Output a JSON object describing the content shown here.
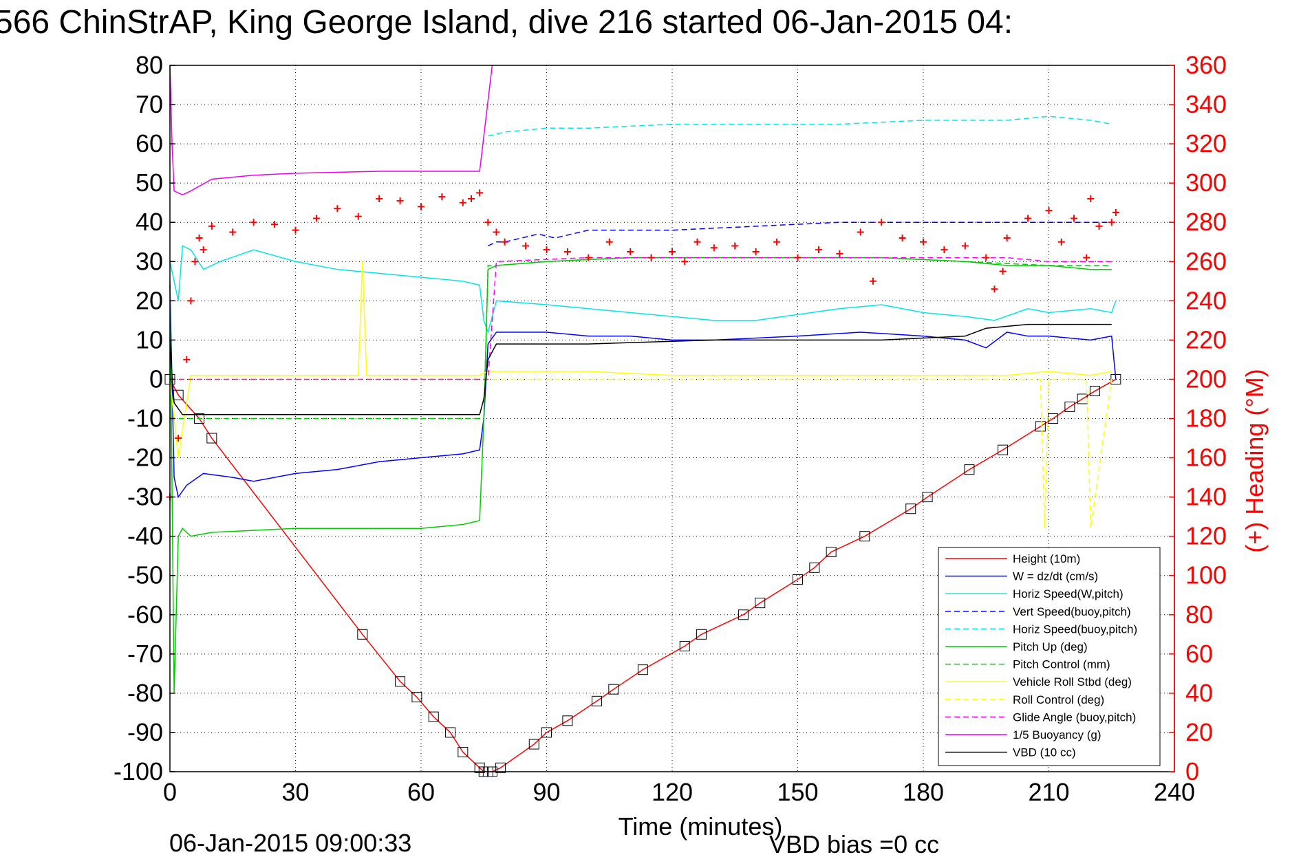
{
  "chart_data": {
    "type": "line",
    "title": "566 ChinStrAP, King George Island, dive 216 started 06-Jan-2015 04:",
    "xlabel": "Time (minutes)",
    "ylabel_right": "(+) Heading (°M)",
    "xlim": [
      0,
      240
    ],
    "ylim": [
      -100,
      80
    ],
    "ylim_right": [
      0,
      360
    ],
    "xticks": [
      "0",
      "30",
      "60",
      "90",
      "120",
      "150",
      "180",
      "210",
      "240"
    ],
    "yticks": [
      "80",
      "70",
      "60",
      "50",
      "40",
      "30",
      "20",
      "10",
      "0",
      "-10",
      "-20",
      "-30",
      "-40",
      "-50",
      "-60",
      "-70",
      "-80",
      "-90",
      "-100"
    ],
    "yticks_right": [
      "360",
      "340",
      "320",
      "300",
      "280",
      "260",
      "240",
      "220",
      "200",
      "180",
      "160",
      "140",
      "120",
      "100",
      "80",
      "60",
      "40",
      "20",
      "0"
    ],
    "grid": true,
    "legend_position": "bottom-right",
    "footer_date": "06-Jan-2015 09:00:33",
    "footer_vbd": "VBD bias =0 cc",
    "series": [
      {
        "name": "Height (10m)",
        "color": "#ff0000",
        "style": "solid",
        "axis": "left",
        "x": [
          0,
          2,
          7,
          10,
          46,
          55,
          59,
          63,
          67,
          70,
          74,
          75,
          76,
          77,
          79,
          87,
          90,
          95,
          102,
          106,
          113,
          123,
          127,
          137,
          141,
          150,
          154,
          158,
          166,
          177,
          181,
          191,
          199,
          208,
          211,
          215,
          218,
          221,
          226
        ],
        "y": [
          0,
          -4,
          -10,
          -15,
          -65,
          -77,
          -81,
          -86,
          -90,
          -95,
          -99,
          -100,
          -100,
          -100,
          -99,
          -93,
          -90,
          -87,
          -82,
          -79,
          -74,
          -68,
          -65,
          -60,
          -57,
          -51,
          -48,
          -44,
          -40,
          -33,
          -30,
          -23,
          -18,
          -12,
          -10,
          -7,
          -5,
          -3,
          0
        ]
      },
      {
        "name": "W = dz/dt (cm/s)",
        "color": "#0000ff",
        "style": "solid",
        "axis": "left",
        "x": [
          0,
          1,
          2,
          4,
          8,
          15,
          20,
          30,
          40,
          50,
          60,
          70,
          74,
          75,
          76,
          78,
          90,
          100,
          110,
          120,
          130,
          150,
          165,
          180,
          190,
          195,
          200,
          205,
          210,
          220,
          225,
          226
        ],
        "y": [
          24,
          -25,
          -30,
          -27,
          -24,
          -25,
          -26,
          -24,
          -23,
          -21,
          -20,
          -19,
          -18,
          -10,
          9,
          12,
          12,
          11,
          11,
          10,
          10,
          11,
          12,
          11,
          10,
          8,
          12,
          11,
          11,
          10,
          11,
          0
        ]
      },
      {
        "name": "Horiz Speed(W,pitch)",
        "color": "#00e5e5",
        "style": "solid",
        "axis": "left",
        "x": [
          0,
          2,
          3,
          5,
          8,
          12,
          20,
          30,
          40,
          50,
          60,
          70,
          74,
          75,
          76,
          78,
          90,
          110,
          120,
          130,
          140,
          160,
          170,
          180,
          190,
          197,
          205,
          210,
          220,
          225,
          226
        ],
        "y": [
          30,
          20,
          34,
          33,
          28,
          30,
          33,
          30,
          28,
          27,
          26,
          25,
          24,
          15,
          12,
          20,
          19,
          17,
          16,
          15,
          15,
          18,
          19,
          17,
          16,
          15,
          18,
          17,
          18,
          17,
          20
        ]
      },
      {
        "name": "Vert Speed(buoy,pitch)",
        "color": "#0000ff",
        "style": "dashed",
        "axis": "left",
        "x": [
          76,
          78,
          80,
          88,
          92,
          100,
          120,
          140,
          160,
          190,
          200,
          210,
          220,
          225
        ],
        "y": [
          34,
          35,
          35,
          37,
          36,
          38,
          38,
          39,
          40,
          40,
          40,
          40,
          40,
          40
        ]
      },
      {
        "name": "Horiz Speed(buoy,pitch)",
        "color": "#00e5e5",
        "style": "dashed",
        "axis": "left",
        "x": [
          76,
          80,
          90,
          100,
          120,
          140,
          160,
          180,
          200,
          210,
          220,
          225
        ],
        "y": [
          62,
          63,
          64,
          64,
          65,
          65,
          65,
          66,
          66,
          67,
          66,
          65
        ]
      },
      {
        "name": "Pitch Up (deg)",
        "color": "#00cc00",
        "style": "solid",
        "axis": "left",
        "x": [
          0,
          1,
          2,
          3,
          5,
          10,
          30,
          50,
          60,
          70,
          74,
          75,
          76,
          78,
          90,
          110,
          130,
          150,
          170,
          190,
          200,
          210,
          220,
          225
        ],
        "y": [
          25,
          -80,
          -40,
          -38,
          -40,
          -39,
          -38,
          -38,
          -38,
          -37,
          -36,
          -10,
          28,
          29,
          30,
          31,
          31,
          31,
          31,
          30,
          29,
          29,
          28,
          28
        ]
      },
      {
        "name": "Pitch Control (mm)",
        "color": "#00cc00",
        "style": "dashed",
        "axis": "left",
        "x": [
          0,
          5,
          10,
          30,
          50,
          70,
          74,
          75,
          76,
          78,
          90,
          110,
          130,
          150,
          170,
          190,
          210,
          225
        ],
        "y": [
          -10,
          -10,
          -10,
          -10,
          -10,
          -10,
          -10,
          -10,
          29,
          29,
          30,
          31,
          31,
          31,
          31,
          30,
          29,
          29
        ]
      },
      {
        "name": "Vehicle Roll Stbd (deg)",
        "color": "#ffff00",
        "style": "solid",
        "axis": "left",
        "x": [
          0,
          2,
          5,
          10,
          20,
          30,
          40,
          45,
          46,
          47,
          50,
          60,
          70,
          74,
          76,
          78,
          90,
          100,
          120,
          140,
          160,
          180,
          200,
          210,
          220,
          225
        ],
        "y": [
          0,
          -20,
          1,
          1,
          1,
          1,
          1,
          1,
          30,
          1,
          1,
          1,
          1,
          1,
          2,
          2,
          2,
          2,
          1,
          1,
          1,
          1,
          1,
          2,
          1,
          2
        ]
      },
      {
        "name": "Roll Control (deg)",
        "color": "#ffff00",
        "style": "dashed",
        "axis": "left",
        "x": [
          0,
          5,
          10,
          40,
          60,
          74,
          76,
          78,
          100,
          150,
          200,
          208,
          209,
          210,
          219,
          220,
          225
        ],
        "y": [
          0,
          0,
          0,
          0,
          0,
          0,
          0,
          0,
          0,
          0,
          0,
          0,
          -38,
          0,
          0,
          -38,
          0
        ]
      },
      {
        "name": "Glide Angle (buoy,pitch)",
        "color": "#ff00ff",
        "style": "dashed",
        "axis": "left",
        "x": [
          0,
          10,
          40,
          74,
          76,
          78,
          100,
          130,
          160,
          190,
          200,
          210,
          225
        ],
        "y": [
          0,
          0,
          0,
          0,
          0,
          30,
          31,
          31,
          31,
          31,
          31,
          30,
          30
        ]
      },
      {
        "name": "1/5 Buoyancy (g)",
        "color": "#ee00ee",
        "style": "solid",
        "axis": "left",
        "x": [
          0,
          0.5,
          1,
          3,
          5,
          10,
          20,
          30,
          50,
          70,
          74,
          77
        ],
        "y": [
          80,
          60,
          48,
          47,
          48,
          51,
          52,
          52.5,
          53,
          53,
          53,
          80
        ]
      },
      {
        "name": "VBD (10 cc)",
        "color": "#000000",
        "style": "solid",
        "axis": "left",
        "x": [
          0,
          0.5,
          1,
          3,
          70,
          74,
          75,
          76,
          78,
          80,
          100,
          130,
          150,
          170,
          190,
          195,
          205,
          225
        ],
        "y": [
          10,
          1,
          -6,
          -9,
          -9,
          -9,
          -5,
          5,
          9,
          9,
          9,
          10,
          10,
          10,
          11,
          13,
          14,
          14
        ]
      },
      {
        "name": "Heading",
        "color": "#ff0000",
        "style": "markers",
        "axis": "right",
        "x": [
          0,
          2,
          4,
          5,
          6,
          7,
          8,
          10,
          15,
          20,
          25,
          30,
          35,
          40,
          45,
          50,
          55,
          60,
          65,
          70,
          72,
          74,
          76,
          78,
          80,
          85,
          90,
          95,
          100,
          105,
          110,
          115,
          120,
          123,
          126,
          130,
          135,
          140,
          145,
          150,
          155,
          160,
          165,
          168,
          170,
          175,
          180,
          185,
          190,
          195,
          197,
          199,
          200,
          205,
          210,
          213,
          216,
          219,
          220,
          222,
          225,
          226
        ],
        "y": [
          140,
          170,
          210,
          240,
          260,
          272,
          266,
          278,
          275,
          280,
          279,
          276,
          282,
          287,
          283,
          292,
          291,
          288,
          293,
          290,
          292,
          295,
          280,
          275,
          270,
          268,
          266,
          265,
          262,
          270,
          265,
          262,
          265,
          260,
          270,
          267,
          268,
          265,
          270,
          262,
          266,
          264,
          275,
          250,
          280,
          272,
          270,
          266,
          268,
          262,
          246,
          255,
          272,
          282,
          286,
          270,
          282,
          262,
          292,
          278,
          280,
          285
        ]
      }
    ]
  }
}
